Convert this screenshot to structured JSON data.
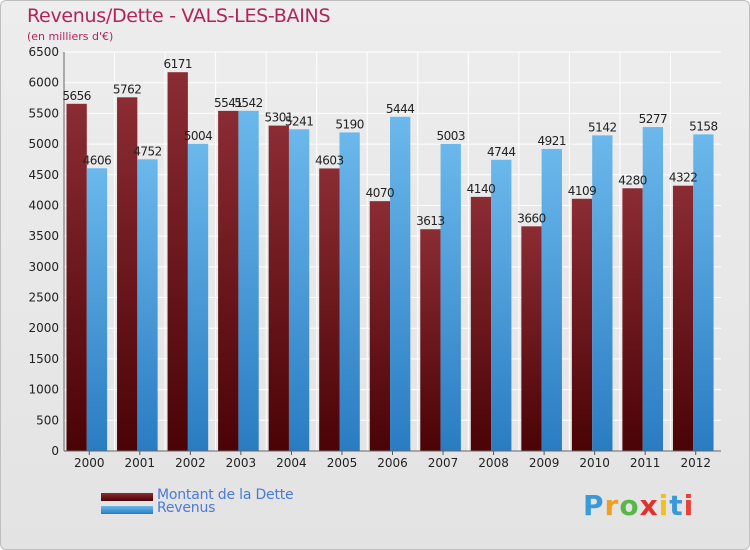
{
  "colors": {
    "dette_top": "#8b2c33",
    "dette_bottom": "#4a0306",
    "revenus_top": "#6bb8ec",
    "revenus_bottom": "#2a7cc2",
    "title": "#b0245a",
    "legend_text": "#4a7ad9"
  },
  "legend": {
    "dette": "Montant de la Dette",
    "revenus": "Revenus"
  },
  "logo": {
    "text": "Proxiti"
  },
  "chart_data": {
    "type": "bar",
    "title": "Revenus/Dette - VALS-LES-BAINS",
    "subtitle": "(en milliers d'€)",
    "categories": [
      "2000",
      "2001",
      "2002",
      "2003",
      "2004",
      "2005",
      "2006",
      "2007",
      "2008",
      "2009",
      "2010",
      "2011",
      "2012"
    ],
    "series": [
      {
        "name": "Montant de la Dette",
        "values": [
          5656,
          5762,
          6171,
          5541,
          5301,
          4603,
          4070,
          3613,
          4140,
          3660,
          4109,
          4280,
          4322
        ]
      },
      {
        "name": "Revenus",
        "values": [
          4606,
          4752,
          5004,
          5542,
          5241,
          5190,
          5444,
          5003,
          4744,
          4921,
          5142,
          5277,
          5158
        ]
      }
    ],
    "xlabel": "",
    "ylabel": "",
    "ylim": [
      0,
      6500
    ],
    "yticks": [
      0,
      500,
      1000,
      1500,
      2000,
      2500,
      3000,
      3500,
      4000,
      4500,
      5000,
      5500,
      6000,
      6500
    ],
    "grid": true,
    "legend_position": "bottom-left"
  }
}
